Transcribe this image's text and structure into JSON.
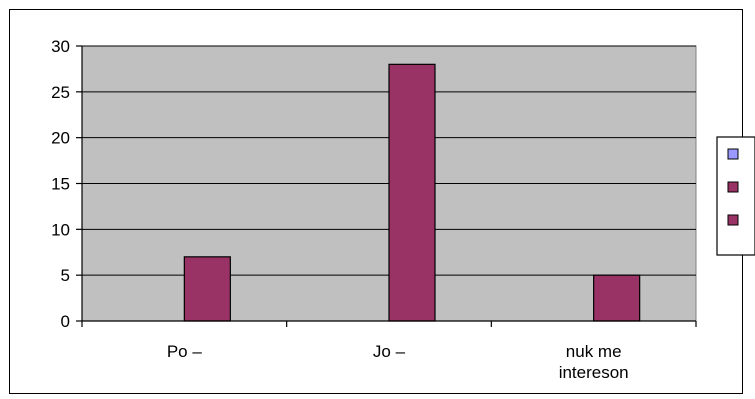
{
  "chart_data": {
    "type": "bar",
    "title": "",
    "xlabel": "",
    "ylabel": "",
    "categories": [
      [
        "Po –"
      ],
      [
        "Jo –"
      ],
      [
        "nuk me",
        "intereson"
      ]
    ],
    "series": [
      {
        "color": "#9999ff",
        "values": [
          0,
          0,
          0
        ]
      },
      {
        "color": "#993366",
        "values": [
          7,
          28,
          5
        ]
      }
    ],
    "ylim": [
      0,
      30
    ],
    "yticks": [
      0,
      5,
      10,
      15,
      20,
      25,
      30
    ],
    "grid": true,
    "plot_background": "#c0c0c0",
    "legend": {
      "position": "right",
      "swatches": [
        "#9999ff",
        "#993366",
        "#993366"
      ]
    }
  }
}
